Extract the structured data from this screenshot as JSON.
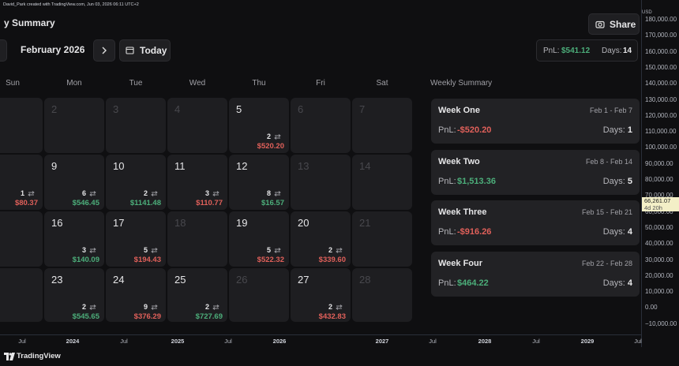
{
  "header": {
    "credit": "David_Park created with TradingView.com, Jun 03, 2026 06:11 UTC+2"
  },
  "toolbar": {
    "title": "y Summary",
    "share": "Share",
    "month": "February 2026",
    "today": "Today",
    "pnl_label": "PnL:",
    "pnl_value": "$541.12",
    "days_label": "Days:",
    "days_value": "14"
  },
  "weekdays": [
    "Sun",
    "Mon",
    "Tue",
    "Wed",
    "Thu",
    "Fri",
    "Sat"
  ],
  "weekly_summary_title": "Weekly Summary",
  "calendar": {
    "rows": [
      [
        {},
        {
          "day": "2"
        },
        {
          "day": "3"
        },
        {
          "day": "4"
        },
        {
          "day": "5",
          "trades": "2",
          "pnl": "$520.20",
          "color": "#e0605a"
        },
        {
          "day": "6"
        },
        {
          "day": "7"
        }
      ],
      [
        {
          "trades": "1",
          "pnl": "$80.37",
          "color": "#e0605a"
        },
        {
          "day": "9",
          "trades": "6",
          "pnl": "$546.45",
          "color": "#4cae7a"
        },
        {
          "day": "10",
          "trades": "2",
          "pnl": "$1141.48",
          "color": "#4cae7a"
        },
        {
          "day": "11",
          "trades": "3",
          "pnl": "$110.77",
          "color": "#e0605a"
        },
        {
          "day": "12",
          "trades": "8",
          "pnl": "$16.57",
          "color": "#4cae7a"
        },
        {
          "day": "13"
        },
        {
          "day": "14"
        }
      ],
      [
        {},
        {
          "day": "16",
          "trades": "3",
          "pnl": "$140.09",
          "color": "#4cae7a"
        },
        {
          "day": "17",
          "trades": "5",
          "pnl": "$194.43",
          "color": "#e0605a"
        },
        {
          "day": "18"
        },
        {
          "day": "19",
          "trades": "5",
          "pnl": "$522.32",
          "color": "#e0605a"
        },
        {
          "day": "20",
          "trades": "2",
          "pnl": "$339.60",
          "color": "#e0605a"
        },
        {
          "day": "21"
        }
      ],
      [
        {},
        {
          "day": "23",
          "trades": "2",
          "pnl": "$545.65",
          "color": "#4cae7a"
        },
        {
          "day": "24",
          "trades": "9",
          "pnl": "$376.29",
          "color": "#e0605a"
        },
        {
          "day": "25",
          "trades": "2",
          "pnl": "$727.69",
          "color": "#4cae7a"
        },
        {
          "day": "26"
        },
        {
          "day": "27",
          "trades": "2",
          "pnl": "$432.83",
          "color": "#e0605a"
        },
        {
          "day": "28"
        }
      ]
    ]
  },
  "weeks": [
    {
      "name": "Week One",
      "range": "Feb 1 - Feb 7",
      "pnl_label": "PnL:",
      "pnl": "-$520.20",
      "color": "#e0605a",
      "days_label": "Days:",
      "days": "1"
    },
    {
      "name": "Week Two",
      "range": "Feb 8 - Feb 14",
      "pnl_label": "PnL:",
      "pnl": "$1,513.36",
      "color": "#4cae7a",
      "days_label": "Days:",
      "days": "5"
    },
    {
      "name": "Week Three",
      "range": "Feb 15 - Feb 21",
      "pnl_label": "PnL:",
      "pnl": "-$916.26",
      "color": "#e0605a",
      "days_label": "Days:",
      "days": "4"
    },
    {
      "name": "Week Four",
      "range": "Feb 22 - Feb 28",
      "pnl_label": "PnL:",
      "pnl": "$464.22",
      "color": "#4cae7a",
      "days_label": "Days:",
      "days": "4"
    }
  ],
  "price_axis": {
    "unit": "USD",
    "labels": [
      "180,000.00",
      "170,000.00",
      "160,000.00",
      "150,000.00",
      "140,000.00",
      "130,000.00",
      "120,000.00",
      "110,000.00",
      "100,000.00",
      "90,000.00",
      "80,000.00",
      "70,000.00",
      "60,000.00",
      "50,000.00",
      "40,000.00",
      "30,000.00",
      "20,000.00",
      "10,000.00",
      "0.00",
      "−10,000.00"
    ],
    "last_price": "66,261.07",
    "countdown": "4d 20h"
  },
  "time_axis": {
    "labels": [
      "Jul",
      "2024",
      "Jul",
      "2025",
      "Jul",
      "2026",
      "2027",
      "Jul",
      "2028",
      "Jul",
      "2029",
      "Jul"
    ]
  },
  "footer": {
    "brand": "TradingView"
  }
}
